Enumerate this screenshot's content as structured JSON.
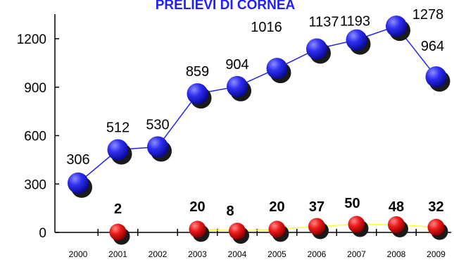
{
  "chart_data": {
    "type": "line",
    "title": "PRELIEVI DI CORNEA",
    "xlabel": "",
    "ylabel": "",
    "x": [
      "2000",
      "2001",
      "2002",
      "2003",
      "2004",
      "2005",
      "2006",
      "2007",
      "2008",
      "2009"
    ],
    "y_ticks": [
      "0",
      "300",
      "600",
      "900",
      "1200"
    ],
    "ylim": [
      0,
      1300
    ],
    "grid": false,
    "legend": "none",
    "series": [
      {
        "color": "#2323e8",
        "line_color": "#2323e8",
        "values": [
          306,
          512,
          530,
          859,
          904,
          1016,
          1137,
          1193,
          1278,
          964
        ],
        "labels": [
          "306",
          "512",
          "530",
          "859",
          "904",
          "1016",
          "1137",
          "1193",
          "1278",
          "964"
        ]
      },
      {
        "color": "#ee1c1c",
        "line_color": "#ffff33",
        "values": [
          null,
          2,
          null,
          20,
          8,
          20,
          37,
          50,
          48,
          32
        ],
        "labels": [
          "",
          "2",
          "",
          "20",
          "8",
          "20",
          "37",
          "50",
          "48",
          "32"
        ]
      }
    ]
  }
}
